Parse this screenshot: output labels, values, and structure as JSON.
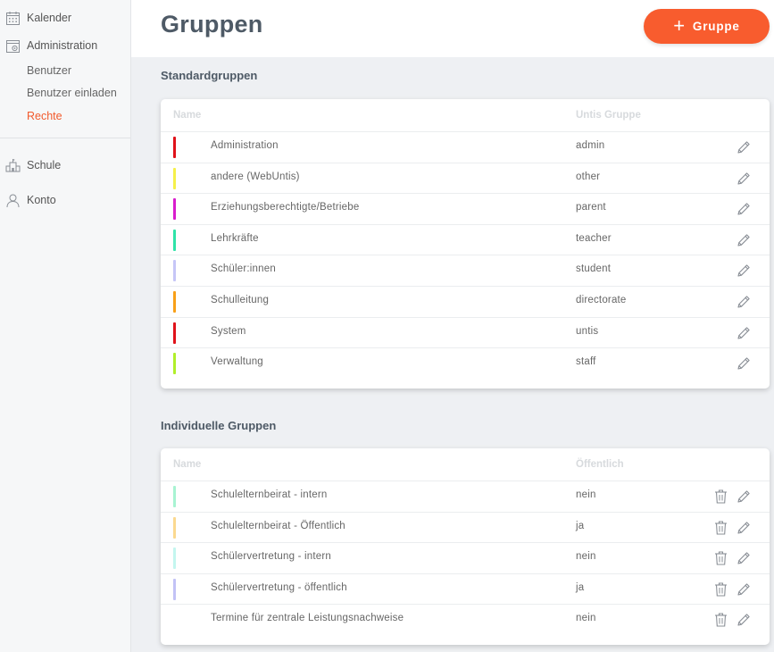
{
  "sidebar": {
    "kalender": "Kalender",
    "administration": "Administration",
    "sub": [
      "Benutzer",
      "Benutzer einladen",
      "Rechte"
    ],
    "schule": "Schule",
    "konto": "Konto"
  },
  "header": {
    "title": "Gruppen",
    "add_label": "Gruppe"
  },
  "standard": {
    "title": "Standardgruppen",
    "col_name": "Name",
    "col_value": "Untis Gruppe",
    "rows": [
      {
        "name": "Administration",
        "value": "admin",
        "color": "#e0121a"
      },
      {
        "name": "andere (WebUntis)",
        "value": "other",
        "color": "#f5f04a"
      },
      {
        "name": "Erziehungsberechtigte/Betriebe",
        "value": "parent",
        "color": "#d81dcd"
      },
      {
        "name": "Lehrkräfte",
        "value": "teacher",
        "color": "#2fe3a8"
      },
      {
        "name": "Schüler:innen",
        "value": "student",
        "color": "#c6c6f7"
      },
      {
        "name": "Schulleitung",
        "value": "directorate",
        "color": "#f8a018"
      },
      {
        "name": "System",
        "value": "untis",
        "color": "#e0121a"
      },
      {
        "name": "Verwaltung",
        "value": "staff",
        "color": "#b1ef2a"
      }
    ]
  },
  "individual": {
    "title": "Individuelle Gruppen",
    "col_name": "Name",
    "col_value": "Öffentlich",
    "rows": [
      {
        "name": "Schulelternbeirat - intern",
        "value": "nein",
        "color": "#a8f3d2"
      },
      {
        "name": "Schulelternbeirat - Öffentlich",
        "value": "ja",
        "color": "#fbd990"
      },
      {
        "name": "Schülervertretung - intern",
        "value": "nein",
        "color": "#c4f6ef"
      },
      {
        "name": "Schülervertretung - öffentlich",
        "value": "ja",
        "color": "#c2c2f6"
      },
      {
        "name": "Termine für zentrale Leistungsnachweise",
        "value": "nein",
        "color": ""
      }
    ]
  },
  "icons": {
    "kalender": "calendar-icon",
    "administration": "admin-settings-icon",
    "schule": "school-icon",
    "konto": "user-icon",
    "edit": "pencil-icon",
    "delete": "trash-icon",
    "add": "plus-icon"
  },
  "colors": {
    "accent": "#f85c2e",
    "active_nav": "#f25a2c"
  }
}
